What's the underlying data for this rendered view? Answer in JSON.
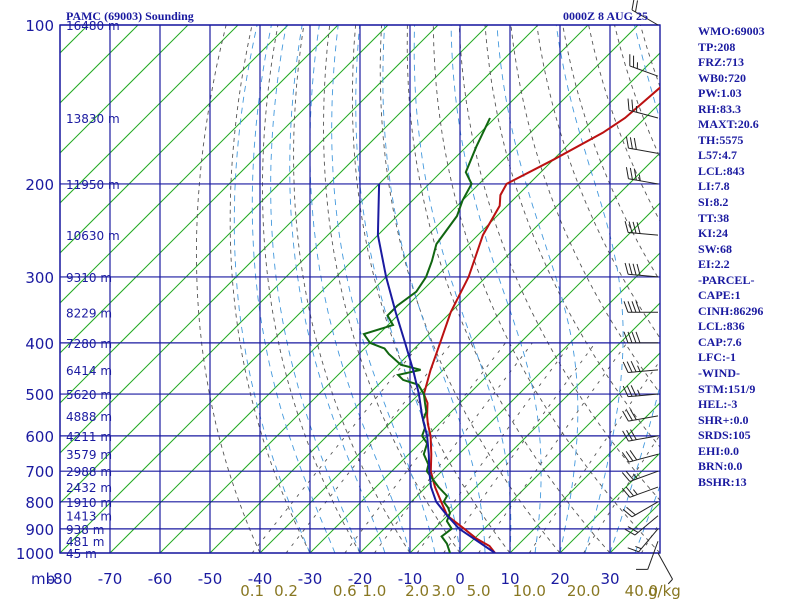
{
  "header": {
    "station": "PAMC (69003) Sounding",
    "datetime": "0000Z  8 AUG 25"
  },
  "indices": [
    "WMO:69003",
    "TP:208",
    "FRZ:713",
    "WB0:720",
    "PW:1.03",
    "RH:83.3",
    "MAXT:20.6",
    "TH:5575",
    "L57:4.7",
    "LCL:843",
    "LI:7.8",
    "SI:8.2",
    "TT:38",
    "KI:24",
    "SW:68",
    "EI:2.2",
    "-PARCEL-",
    "CAPE:1",
    "CINH:86296",
    "LCL:836",
    "CAP:7.6",
    "LFC:-1",
    "-WIND-",
    "STM:151/9",
    "HEL:-3",
    "SHR+:0.0",
    "SRDS:105",
    "EHI:0.0",
    "BRN:0.0",
    "BSHR:13"
  ],
  "colors": {
    "grid": "#1a1aa0",
    "isotherm": "#22aa22",
    "dry_adiabat": "#555555",
    "moist_adiabat": "#4499dd",
    "temperature": "#bb1111",
    "dewpoint": "#116611",
    "parcel": "#1a1aa0",
    "text": "#1a1aa0",
    "mixing_ratio_labels": "#887722"
  },
  "chart_data": {
    "type": "line",
    "subtype": "skew-t log-p",
    "xlabel": "",
    "ylabel": "mb",
    "x_ticks": [
      -80,
      -70,
      -60,
      -50,
      -40,
      -30,
      -20,
      -10,
      0,
      10,
      20,
      30
    ],
    "y_scale": "log",
    "y_ticks": [
      100,
      200,
      300,
      400,
      500,
      600,
      700,
      800,
      900,
      1000
    ],
    "grid": true,
    "height_labels": [
      {
        "p": 100,
        "label": "16480 m"
      },
      {
        "p": 150,
        "label": "13830 m"
      },
      {
        "p": 200,
        "label": "11950 m"
      },
      {
        "p": 250,
        "label": "10630 m"
      },
      {
        "p": 300,
        "label": "9310 m"
      },
      {
        "p": 350,
        "label": "8229 m"
      },
      {
        "p": 400,
        "label": "7280 m"
      },
      {
        "p": 450,
        "label": "6414 m"
      },
      {
        "p": 500,
        "label": "5620 m"
      },
      {
        "p": 550,
        "label": "4888 m"
      },
      {
        "p": 600,
        "label": "4211 m"
      },
      {
        "p": 650,
        "label": "3579 m"
      },
      {
        "p": 700,
        "label": "2988 m"
      },
      {
        "p": 750,
        "label": "2432 m"
      },
      {
        "p": 800,
        "label": "1910 m"
      },
      {
        "p": 850,
        "label": "1413 m"
      },
      {
        "p": 900,
        "label": "938 m"
      },
      {
        "p": 950,
        "label": "481 m"
      },
      {
        "p": 1000,
        "label": "45 m"
      }
    ],
    "mixing_ratio_labels": [
      {
        "w": 0.1,
        "label": "0.1"
      },
      {
        "w": 0.2,
        "label": "0.2"
      },
      {
        "w": 0.6,
        "label": "0.6"
      },
      {
        "w": 1.0,
        "label": "1.0"
      },
      {
        "w": 2.0,
        "label": "2.0"
      },
      {
        "w": 3.0,
        "label": "3.0"
      },
      {
        "w": 5.0,
        "label": "5.0"
      },
      {
        "w": 10.0,
        "label": "10.0"
      },
      {
        "w": 20.0,
        "label": "20.0"
      },
      {
        "w": 40.0,
        "label": "40.0"
      }
    ],
    "mixing_ratio_unit": "g/kg",
    "series": [
      {
        "key": "temperature",
        "points": [
          [
            1000,
            7
          ],
          [
            970,
            4.5
          ],
          [
            940,
            0.5
          ],
          [
            900,
            -4
          ],
          [
            850,
            -10
          ],
          [
            800,
            -14
          ],
          [
            750,
            -18.2
          ],
          [
            700,
            -22.2
          ],
          [
            650,
            -25.5
          ],
          [
            600,
            -29.3
          ],
          [
            570,
            -32.2
          ],
          [
            550,
            -34
          ],
          [
            520,
            -36.5
          ],
          [
            500,
            -39
          ],
          [
            450,
            -42.5
          ],
          [
            400,
            -46
          ],
          [
            350,
            -50
          ],
          [
            300,
            -53.5
          ],
          [
            250,
            -59
          ],
          [
            220,
            -61.5
          ],
          [
            210,
            -63.5
          ],
          [
            200,
            -64.5
          ],
          [
            180,
            -60
          ],
          [
            160,
            -55.5
          ],
          [
            150,
            -54
          ],
          [
            130,
            -53
          ],
          [
            100,
            -51
          ]
        ]
      },
      {
        "key": "dewpoint",
        "points": [
          [
            1000,
            -2
          ],
          [
            960,
            -4.5
          ],
          [
            930,
            -7
          ],
          [
            900,
            -6.5
          ],
          [
            870,
            -9
          ],
          [
            840,
            -10
          ],
          [
            820,
            -11.5
          ],
          [
            800,
            -13.5
          ],
          [
            780,
            -14
          ],
          [
            750,
            -17.5
          ],
          [
            700,
            -23
          ],
          [
            680,
            -24
          ],
          [
            650,
            -27
          ],
          [
            620,
            -28.5
          ],
          [
            600,
            -31
          ],
          [
            580,
            -32
          ],
          [
            560,
            -34
          ],
          [
            540,
            -35
          ],
          [
            520,
            -37
          ],
          [
            500,
            -39
          ],
          [
            480,
            -42
          ],
          [
            470,
            -46
          ],
          [
            460,
            -48
          ],
          [
            450,
            -44.5
          ],
          [
            440,
            -49.5
          ],
          [
            420,
            -54
          ],
          [
            410,
            -56
          ],
          [
            400,
            -60
          ],
          [
            385,
            -63
          ],
          [
            370,
            -59
          ],
          [
            355,
            -62
          ],
          [
            340,
            -62
          ],
          [
            320,
            -61
          ],
          [
            300,
            -62
          ],
          [
            280,
            -64
          ],
          [
            260,
            -66.5
          ],
          [
            230,
            -68
          ],
          [
            215,
            -70
          ],
          [
            200,
            -71.5
          ],
          [
            190,
            -75
          ],
          [
            170,
            -78
          ],
          [
            150,
            -81
          ]
        ]
      },
      {
        "key": "parcel",
        "points": [
          [
            1000,
            7
          ],
          [
            900,
            -5
          ],
          [
            850,
            -10
          ],
          [
            800,
            -15
          ],
          [
            750,
            -19
          ],
          [
            700,
            -22.5
          ],
          [
            650,
            -26
          ],
          [
            600,
            -30
          ],
          [
            550,
            -35
          ],
          [
            500,
            -40
          ],
          [
            450,
            -46
          ],
          [
            400,
            -53
          ],
          [
            350,
            -61
          ],
          [
            300,
            -70
          ],
          [
            250,
            -80
          ],
          [
            200,
            -90
          ]
        ]
      }
    ],
    "wind_barbs": [
      {
        "p": 1000,
        "dir": 151,
        "kt": 5
      },
      {
        "p": 950,
        "dir": 200,
        "kt": 10
      },
      {
        "p": 900,
        "dir": 220,
        "kt": 15
      },
      {
        "p": 850,
        "dir": 230,
        "kt": 20
      },
      {
        "p": 800,
        "dir": 240,
        "kt": 20
      },
      {
        "p": 750,
        "dir": 250,
        "kt": 25
      },
      {
        "p": 700,
        "dir": 250,
        "kt": 25
      },
      {
        "p": 650,
        "dir": 255,
        "kt": 30
      },
      {
        "p": 600,
        "dir": 260,
        "kt": 30
      },
      {
        "p": 550,
        "dir": 260,
        "kt": 30
      },
      {
        "p": 500,
        "dir": 265,
        "kt": 35
      },
      {
        "p": 450,
        "dir": 265,
        "kt": 35
      },
      {
        "p": 400,
        "dir": 270,
        "kt": 40
      },
      {
        "p": 350,
        "dir": 270,
        "kt": 40
      },
      {
        "p": 300,
        "dir": 275,
        "kt": 40
      },
      {
        "p": 250,
        "dir": 275,
        "kt": 40
      },
      {
        "p": 200,
        "dir": 280,
        "kt": 35
      },
      {
        "p": 175,
        "dir": 280,
        "kt": 30
      },
      {
        "p": 150,
        "dir": 285,
        "kt": 25
      },
      {
        "p": 125,
        "dir": 290,
        "kt": 25
      },
      {
        "p": 100,
        "dir": 300,
        "kt": 20
      }
    ]
  }
}
